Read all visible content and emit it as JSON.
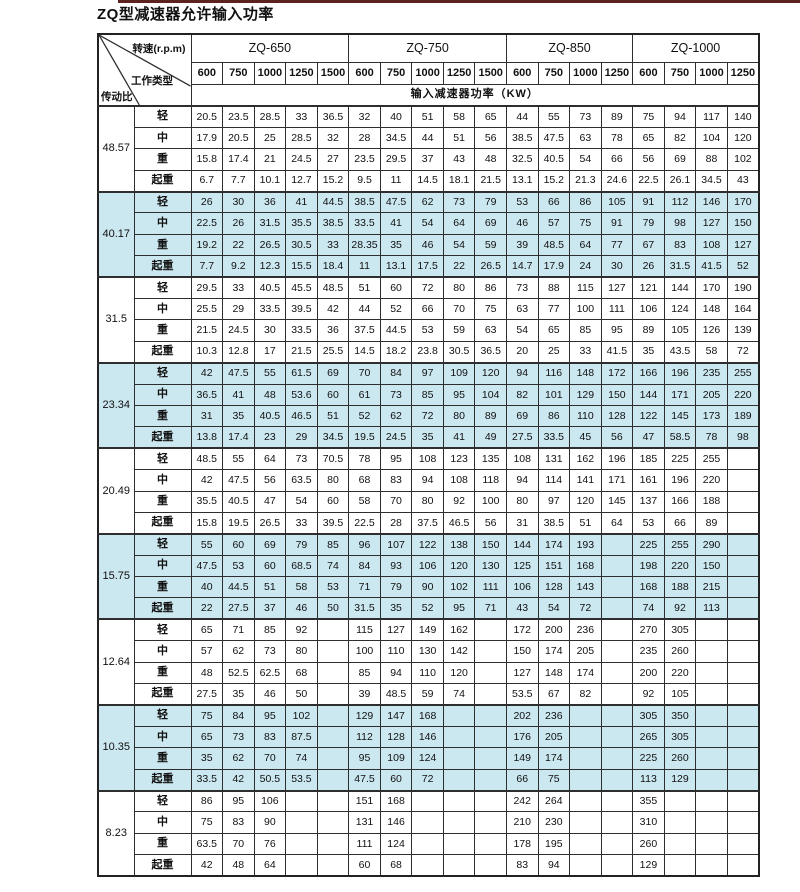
{
  "title": "ZQ型减速器允许输入功率",
  "colors": {
    "shade": "#cbe7f0",
    "border": "#2e2e2e",
    "top_strip": "#5c2220"
  },
  "header": {
    "corner": {
      "speed_label": "转速(r.p.m)",
      "work_type_label": "工作类型",
      "ratio_label": "传动比"
    },
    "groups": [
      {
        "label": "ZQ-650",
        "speeds": [
          "600",
          "750",
          "1000",
          "1250",
          "1500"
        ]
      },
      {
        "label": "ZQ-750",
        "speeds": [
          "600",
          "750",
          "1000",
          "1250",
          "1500"
        ]
      },
      {
        "label": "ZQ-850",
        "speeds": [
          "600",
          "750",
          "1000",
          "1250"
        ]
      },
      {
        "label": "ZQ-1000",
        "speeds": [
          "600",
          "750",
          "1000",
          "1250"
        ]
      }
    ],
    "power_row_label": "输入减速器功率（KW）"
  },
  "work_types": [
    "轻",
    "中",
    "重",
    "起重"
  ],
  "table": {
    "groups": [
      {
        "ratio": "48.57",
        "shaded": false,
        "rows": [
          {
            "type": "轻",
            "values": [
              "20.5",
              "23.5",
              "28.5",
              "33",
              "36.5",
              "32",
              "40",
              "51",
              "58",
              "65",
              "44",
              "55",
              "73",
              "89",
              "75",
              "94",
              "117",
              "140"
            ]
          },
          {
            "type": "中",
            "values": [
              "17.9",
              "20.5",
              "25",
              "28.5",
              "32",
              "28",
              "34.5",
              "44",
              "51",
              "56",
              "38.5",
              "47.5",
              "63",
              "78",
              "65",
              "82",
              "104",
              "120"
            ]
          },
          {
            "type": "重",
            "values": [
              "15.8",
              "17.4",
              "21",
              "24.5",
              "27",
              "23.5",
              "29.5",
              "37",
              "43",
              "48",
              "32.5",
              "40.5",
              "54",
              "66",
              "56",
              "69",
              "88",
              "102"
            ]
          },
          {
            "type": "起重",
            "values": [
              "6.7",
              "7.7",
              "10.1",
              "12.7",
              "15.2",
              "9.5",
              "11",
              "14.5",
              "18.1",
              "21.5",
              "13.1",
              "15.2",
              "21.3",
              "24.6",
              "22.5",
              "26.1",
              "34.5",
              "43"
            ]
          }
        ]
      },
      {
        "ratio": "40.17",
        "shaded": true,
        "rows": [
          {
            "type": "轻",
            "values": [
              "26",
              "30",
              "36",
              "41",
              "44.5",
              "38.5",
              "47.5",
              "62",
              "73",
              "79",
              "53",
              "66",
              "86",
              "105",
              "91",
              "112",
              "146",
              "170"
            ]
          },
          {
            "type": "中",
            "values": [
              "22.5",
              "26",
              "31.5",
              "35.5",
              "38.5",
              "33.5",
              "41",
              "54",
              "64",
              "69",
              "46",
              "57",
              "75",
              "91",
              "79",
              "98",
              "127",
              "150"
            ]
          },
          {
            "type": "重",
            "values": [
              "19.2",
              "22",
              "26.5",
              "30.5",
              "33",
              "28.35",
              "35",
              "46",
              "54",
              "59",
              "39",
              "48.5",
              "64",
              "77",
              "67",
              "83",
              "108",
              "127"
            ]
          },
          {
            "type": "起重",
            "values": [
              "7.7",
              "9.2",
              "12.3",
              "15.5",
              "18.4",
              "11",
              "13.1",
              "17.5",
              "22",
              "26.5",
              "14.7",
              "17.9",
              "24",
              "30",
              "26",
              "31.5",
              "41.5",
              "52"
            ]
          }
        ]
      },
      {
        "ratio": "31.5",
        "shaded": false,
        "rows": [
          {
            "type": "轻",
            "values": [
              "29.5",
              "33",
              "40.5",
              "45.5",
              "48.5",
              "51",
              "60",
              "72",
              "80",
              "86",
              "73",
              "88",
              "115",
              "127",
              "121",
              "144",
              "170",
              "190"
            ]
          },
          {
            "type": "中",
            "values": [
              "25.5",
              "29",
              "33.5",
              "39.5",
              "42",
              "44",
              "52",
              "66",
              "70",
              "75",
              "63",
              "77",
              "100",
              "111",
              "106",
              "124",
              "148",
              "164"
            ]
          },
          {
            "type": "重",
            "values": [
              "21.5",
              "24.5",
              "30",
              "33.5",
              "36",
              "37.5",
              "44.5",
              "53",
              "59",
              "63",
              "54",
              "65",
              "85",
              "95",
              "89",
              "105",
              "126",
              "139"
            ]
          },
          {
            "type": "起重",
            "values": [
              "10.3",
              "12.8",
              "17",
              "21.5",
              "25.5",
              "14.5",
              "18.2",
              "23.8",
              "30.5",
              "36.5",
              "20",
              "25",
              "33",
              "41.5",
              "35",
              "43.5",
              "58",
              "72"
            ]
          }
        ]
      },
      {
        "ratio": "23.34",
        "shaded": true,
        "rows": [
          {
            "type": "轻",
            "values": [
              "42",
              "47.5",
              "55",
              "61.5",
              "69",
              "70",
              "84",
              "97",
              "109",
              "120",
              "94",
              "116",
              "148",
              "172",
              "166",
              "196",
              "235",
              "255"
            ]
          },
          {
            "type": "中",
            "values": [
              "36.5",
              "41",
              "48",
              "53.6",
              "60",
              "61",
              "73",
              "85",
              "95",
              "104",
              "82",
              "101",
              "129",
              "150",
              "144",
              "171",
              "205",
              "220"
            ]
          },
          {
            "type": "重",
            "values": [
              "31",
              "35",
              "40.5",
              "46.5",
              "51",
              "52",
              "62",
              "72",
              "80",
              "89",
              "69",
              "86",
              "110",
              "128",
              "122",
              "145",
              "173",
              "189"
            ]
          },
          {
            "type": "起重",
            "values": [
              "13.8",
              "17.4",
              "23",
              "29",
              "34.5",
              "19.5",
              "24.5",
              "35",
              "41",
              "49",
              "27.5",
              "33.5",
              "45",
              "56",
              "47",
              "58.5",
              "78",
              "98"
            ]
          }
        ]
      },
      {
        "ratio": "20.49",
        "shaded": false,
        "rows": [
          {
            "type": "轻",
            "values": [
              "48.5",
              "55",
              "64",
              "73",
              "70.5",
              "78",
              "95",
              "108",
              "123",
              "135",
              "108",
              "131",
              "162",
              "196",
              "185",
              "225",
              "255",
              ""
            ]
          },
          {
            "type": "中",
            "values": [
              "42",
              "47.5",
              "56",
              "63.5",
              "80",
              "68",
              "83",
              "94",
              "108",
              "118",
              "94",
              "114",
              "141",
              "171",
              "161",
              "196",
              "220",
              ""
            ]
          },
          {
            "type": "重",
            "values": [
              "35.5",
              "40.5",
              "47",
              "54",
              "60",
              "58",
              "70",
              "80",
              "92",
              "100",
              "80",
              "97",
              "120",
              "145",
              "137",
              "166",
              "188",
              ""
            ]
          },
          {
            "type": "起重",
            "values": [
              "15.8",
              "19.5",
              "26.5",
              "33",
              "39.5",
              "22.5",
              "28",
              "37.5",
              "46.5",
              "56",
              "31",
              "38.5",
              "51",
              "64",
              "53",
              "66",
              "89",
              ""
            ]
          }
        ]
      },
      {
        "ratio": "15.75",
        "shaded": true,
        "rows": [
          {
            "type": "轻",
            "values": [
              "55",
              "60",
              "69",
              "79",
              "85",
              "96",
              "107",
              "122",
              "138",
              "150",
              "144",
              "174",
              "193",
              "",
              "225",
              "255",
              "290",
              ""
            ]
          },
          {
            "type": "中",
            "values": [
              "47.5",
              "53",
              "60",
              "68.5",
              "74",
              "84",
              "93",
              "106",
              "120",
              "130",
              "125",
              "151",
              "168",
              "",
              "198",
              "220",
              "150",
              ""
            ]
          },
          {
            "type": "重",
            "values": [
              "40",
              "44.5",
              "51",
              "58",
              "53",
              "71",
              "79",
              "90",
              "102",
              "111",
              "106",
              "128",
              "143",
              "",
              "168",
              "188",
              "215",
              ""
            ]
          },
          {
            "type": "起重",
            "values": [
              "22",
              "27.5",
              "37",
              "46",
              "50",
              "31.5",
              "35",
              "52",
              "95",
              "71",
              "43",
              "54",
              "72",
              "",
              "74",
              "92",
              "113",
              ""
            ]
          }
        ]
      },
      {
        "ratio": "12.64",
        "shaded": false,
        "rows": [
          {
            "type": "轻",
            "values": [
              "65",
              "71",
              "85",
              "92",
              "",
              "115",
              "127",
              "149",
              "162",
              "",
              "172",
              "200",
              "236",
              "",
              "270",
              "305",
              "",
              ""
            ]
          },
          {
            "type": "中",
            "values": [
              "57",
              "62",
              "73",
              "80",
              "",
              "100",
              "110",
              "130",
              "142",
              "",
              "150",
              "174",
              "205",
              "",
              "235",
              "260",
              "",
              ""
            ]
          },
          {
            "type": "重",
            "values": [
              "48",
              "52.5",
              "62.5",
              "68",
              "",
              "85",
              "94",
              "110",
              "120",
              "",
              "127",
              "148",
              "174",
              "",
              "200",
              "220",
              "",
              ""
            ]
          },
          {
            "type": "起重",
            "values": [
              "27.5",
              "35",
              "46",
              "50",
              "",
              "39",
              "48.5",
              "59",
              "74",
              "",
              "53.5",
              "67",
              "82",
              "",
              "92",
              "105",
              "",
              ""
            ]
          }
        ]
      },
      {
        "ratio": "10.35",
        "shaded": true,
        "rows": [
          {
            "type": "轻",
            "values": [
              "75",
              "84",
              "95",
              "102",
              "",
              "129",
              "147",
              "168",
              "",
              "",
              "202",
              "236",
              "",
              "",
              "305",
              "350",
              "",
              ""
            ]
          },
          {
            "type": "中",
            "values": [
              "65",
              "73",
              "83",
              "87.5",
              "",
              "112",
              "128",
              "146",
              "",
              "",
              "176",
              "205",
              "",
              "",
              "265",
              "305",
              "",
              ""
            ]
          },
          {
            "type": "重",
            "values": [
              "35",
              "62",
              "70",
              "74",
              "",
              "95",
              "109",
              "124",
              "",
              "",
              "149",
              "174",
              "",
              "",
              "225",
              "260",
              "",
              ""
            ]
          },
          {
            "type": "起重",
            "values": [
              "33.5",
              "42",
              "50.5",
              "53.5",
              "",
              "47.5",
              "60",
              "72",
              "",
              "",
              "66",
              "75",
              "",
              "",
              "113",
              "129",
              "",
              ""
            ]
          }
        ]
      },
      {
        "ratio": "8.23",
        "shaded": false,
        "rows": [
          {
            "type": "轻",
            "values": [
              "86",
              "95",
              "106",
              "",
              "",
              "151",
              "168",
              "",
              "",
              "",
              "242",
              "264",
              "",
              "",
              "355",
              "",
              "",
              ""
            ]
          },
          {
            "type": "中",
            "values": [
              "75",
              "83",
              "90",
              "",
              "",
              "131",
              "146",
              "",
              "",
              "",
              "210",
              "230",
              "",
              "",
              "310",
              "",
              "",
              ""
            ]
          },
          {
            "type": "重",
            "values": [
              "63.5",
              "70",
              "76",
              "",
              "",
              "111",
              "124",
              "",
              "",
              "",
              "178",
              "195",
              "",
              "",
              "260",
              "",
              "",
              ""
            ]
          },
          {
            "type": "起重",
            "values": [
              "42",
              "48",
              "64",
              "",
              "",
              "60",
              "68",
              "",
              "",
              "",
              "83",
              "94",
              "",
              "",
              "129",
              "",
              "",
              ""
            ]
          }
        ]
      }
    ]
  }
}
